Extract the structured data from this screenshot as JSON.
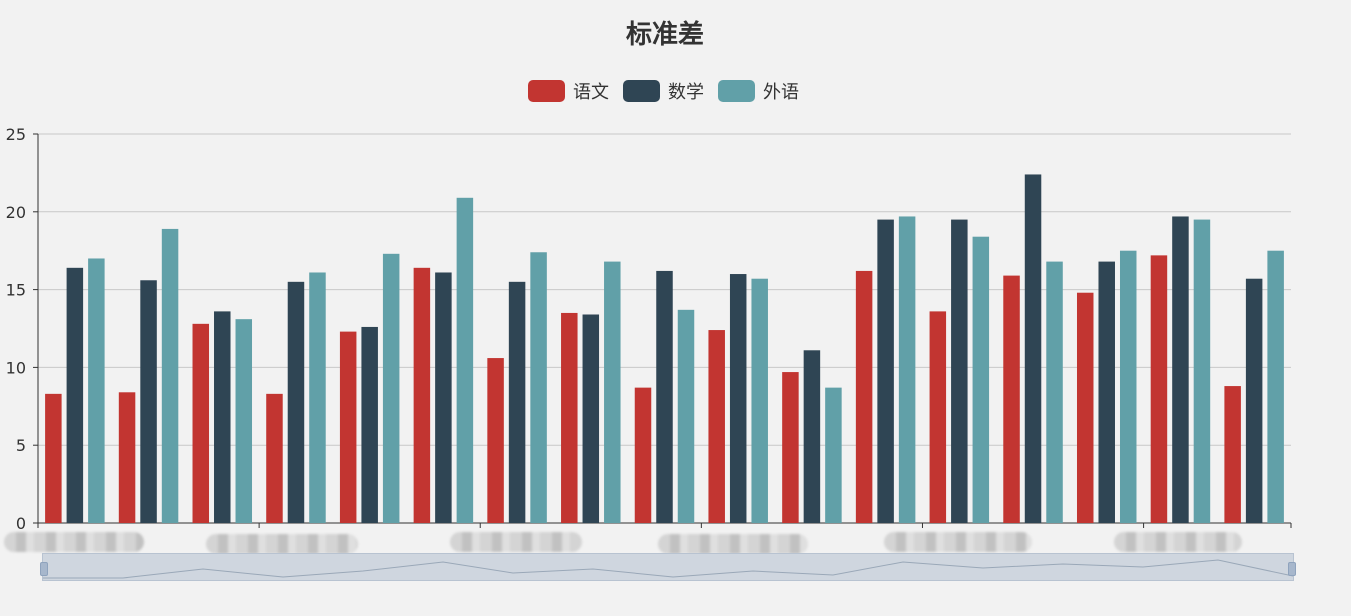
{
  "chart_data": {
    "type": "bar",
    "title": "标准差",
    "categories": [
      "",
      "",
      "",
      "",
      "",
      "",
      "",
      "",
      "",
      "",
      "",
      "",
      "",
      "",
      "",
      "",
      ""
    ],
    "series": [
      {
        "name": "语文",
        "color": "#c23531",
        "values": [
          8.3,
          8.4,
          12.8,
          8.3,
          12.3,
          16.4,
          10.6,
          13.5,
          8.7,
          12.4,
          9.7,
          16.2,
          13.6,
          15.9,
          14.8,
          17.2,
          8.8
        ]
      },
      {
        "name": "数学",
        "color": "#2f4554",
        "values": [
          16.4,
          15.6,
          13.6,
          15.5,
          12.6,
          16.1,
          15.5,
          13.4,
          16.2,
          16.0,
          11.1,
          19.5,
          19.5,
          22.4,
          16.8,
          19.7,
          15.7
        ]
      },
      {
        "name": "外语",
        "color": "#61a0a8",
        "values": [
          17.0,
          18.9,
          13.1,
          16.1,
          17.3,
          20.9,
          17.4,
          16.8,
          13.7,
          15.7,
          8.7,
          19.7,
          18.4,
          16.8,
          17.5,
          19.5,
          17.5
        ]
      }
    ],
    "yticks": [
      "0",
      "5",
      "10",
      "15",
      "20",
      "25"
    ],
    "ylim": [
      0,
      25
    ],
    "grid": true,
    "legend_position": "top-center",
    "x_labels_obscured": true,
    "datazoom_slider": true
  }
}
